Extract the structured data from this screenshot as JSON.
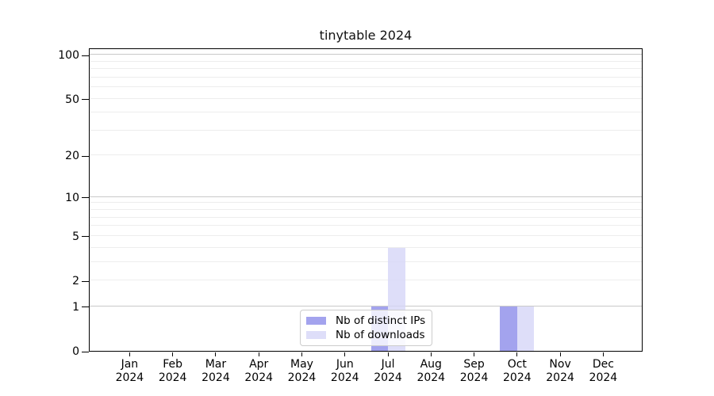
{
  "chart_data": {
    "type": "bar",
    "title": "tinytable 2024",
    "categories": [
      "Jan",
      "Feb",
      "Mar",
      "Apr",
      "May",
      "Jun",
      "Jul",
      "Aug",
      "Sep",
      "Oct",
      "Nov",
      "Dec"
    ],
    "x_year_label": "2024",
    "series": [
      {
        "name": "Nb of distinct IPs",
        "color": "#8c8cea",
        "alpha": 0.8,
        "values": [
          0,
          0,
          0,
          0,
          0,
          0,
          1,
          0,
          0,
          1,
          0,
          0
        ]
      },
      {
        "name": "Nb of downloads",
        "color": "#d6d6f8",
        "alpha": 0.8,
        "values": [
          0,
          0,
          0,
          0,
          0,
          0,
          4,
          0,
          0,
          1,
          0,
          0
        ]
      }
    ],
    "y_axis": {
      "scale": "log1p",
      "tick_values": [
        100,
        50,
        20,
        10,
        5,
        2,
        1,
        0
      ],
      "tick_labels": [
        "100",
        "50",
        "20",
        "10",
        "5",
        "2",
        "1",
        "0"
      ],
      "major_grid_values": [
        1,
        10,
        100
      ],
      "minor_grid_values": [
        2,
        3,
        4,
        5,
        6,
        7,
        8,
        9,
        20,
        30,
        40,
        50,
        60,
        70,
        80,
        90
      ],
      "ylim": [
        0,
        113
      ]
    },
    "legend": {
      "position": "bottom-center-inside",
      "entries": [
        "Nb of distinct IPs",
        "Nb of downloads"
      ]
    },
    "colors": {
      "axis": "#000000",
      "major_grid": "#c9c9c9",
      "minor_grid": "#ededed",
      "legend_border": "#cccccc",
      "title_text": "#111111"
    }
  }
}
